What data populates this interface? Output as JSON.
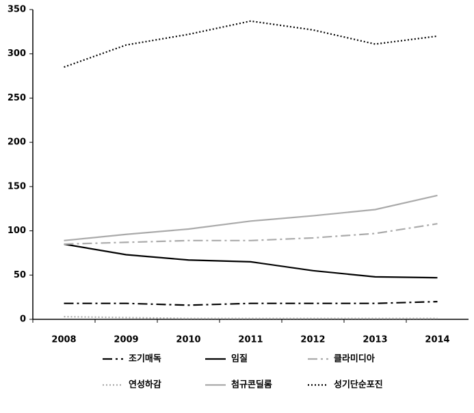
{
  "chart_data": {
    "type": "line",
    "categories": [
      "2008",
      "2009",
      "2010",
      "2011",
      "2012",
      "2013",
      "2014"
    ],
    "series": [
      {
        "name": "조기매독",
        "color": "#000000",
        "style": "dashdot",
        "values": [
          18,
          18,
          16,
          18,
          18,
          18,
          20
        ]
      },
      {
        "name": "임질",
        "color": "#000000",
        "style": "solid",
        "values": [
          85,
          73,
          67,
          65,
          55,
          48,
          47
        ]
      },
      {
        "name": "클라미디아",
        "color": "#aaaaaa",
        "style": "dashdot",
        "values": [
          85,
          87,
          89,
          89,
          92,
          97,
          108
        ]
      },
      {
        "name": "연성하감",
        "color": "#aaaaaa",
        "style": "dotted",
        "values": [
          3,
          2,
          1,
          1,
          1,
          1,
          1
        ]
      },
      {
        "name": "첨규콘딜롬",
        "color": "#aaaaaa",
        "style": "solid",
        "values": [
          89,
          96,
          102,
          111,
          117,
          124,
          140
        ]
      },
      {
        "name": "성기단순포진",
        "color": "#000000",
        "style": "dotted",
        "values": [
          285,
          310,
          322,
          337,
          327,
          311,
          320
        ]
      }
    ],
    "ylim": [
      0,
      350
    ],
    "yticks": [
      0,
      50,
      100,
      150,
      200,
      250,
      300,
      350
    ],
    "legend": "bottom"
  }
}
